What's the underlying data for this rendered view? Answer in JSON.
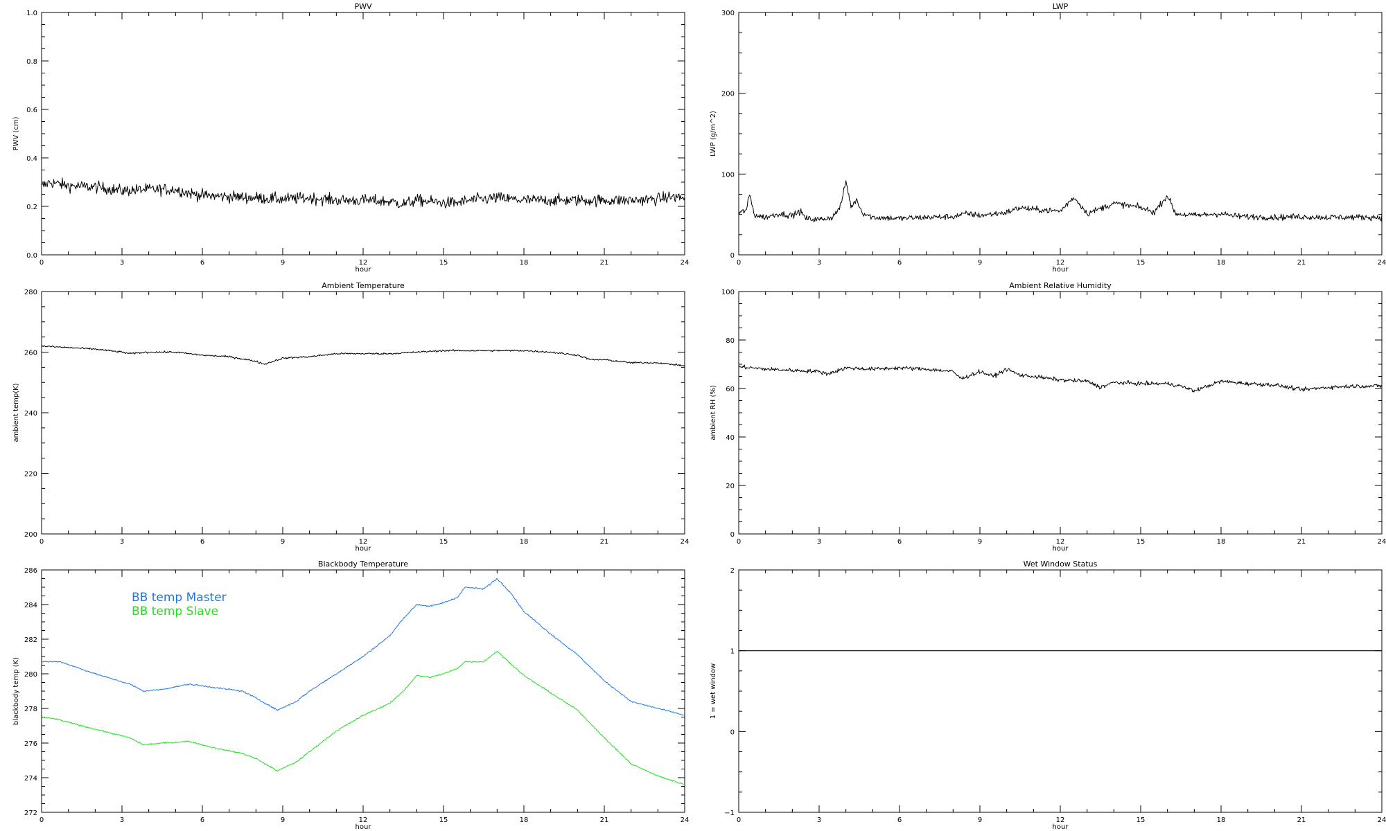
{
  "chart_data": [
    {
      "type": "line",
      "title": "PWV",
      "xlabel": "hour",
      "ylabel": "PWV (cm)",
      "xlim": [
        0,
        24
      ],
      "ylim": [
        0.0,
        1.0
      ],
      "xticks": [
        "0",
        "3",
        "6",
        "9",
        "12",
        "15",
        "18",
        "21",
        "24"
      ],
      "yticks": [
        "0.0",
        "0.2",
        "0.4",
        "0.6",
        "0.8",
        "1.0"
      ],
      "grid": false,
      "series": [
        {
          "color": "#000000",
          "noise": 0.012,
          "x": [
            0,
            0.3,
            1,
            2,
            3,
            4,
            5,
            5.5,
            6,
            7,
            8,
            9,
            10,
            11,
            12,
            13,
            13.5,
            14,
            15,
            15.5,
            16,
            17,
            18,
            19,
            20,
            21,
            22,
            23,
            23.5,
            24
          ],
          "y": [
            0.28,
            0.3,
            0.285,
            0.28,
            0.265,
            0.27,
            0.27,
            0.255,
            0.245,
            0.24,
            0.235,
            0.23,
            0.235,
            0.225,
            0.225,
            0.22,
            0.21,
            0.225,
            0.215,
            0.215,
            0.225,
            0.235,
            0.225,
            0.225,
            0.225,
            0.225,
            0.225,
            0.23,
            0.24,
            0.235
          ]
        }
      ]
    },
    {
      "type": "line",
      "title": "LWP",
      "xlabel": "hour",
      "ylabel": "LWP (g/m^2)",
      "xlim": [
        0,
        24
      ],
      "ylim": [
        -50,
        350
      ],
      "xticks": [
        "0",
        "3",
        "6",
        "9",
        "12",
        "15",
        "18",
        "21",
        "24"
      ],
      "yticks": [
        "0",
        "100",
        "200",
        "300"
      ],
      "grid": false,
      "series": [
        {
          "color": "#000000",
          "noise": 2.5,
          "x": [
            0,
            0.3,
            0.4,
            0.6,
            1,
            1.5,
            2,
            2.3,
            2.5,
            3,
            3.5,
            3.8,
            4,
            4.2,
            4.4,
            4.6,
            5,
            6,
            7,
            8,
            8.5,
            9,
            10,
            10.5,
            11,
            12,
            12.5,
            12.8,
            13,
            14,
            15,
            15.5,
            16,
            16.3,
            17,
            18,
            18.5,
            19,
            20,
            21,
            22,
            23,
            24
          ],
          "y": [
            18,
            25,
            50,
            15,
            12,
            18,
            15,
            22,
            10,
            8,
            12,
            30,
            72,
            28,
            42,
            20,
            12,
            10,
            12,
            13,
            18,
            15,
            20,
            28,
            25,
            22,
            45,
            30,
            18,
            35,
            28,
            20,
            48,
            18,
            15,
            18,
            14,
            13,
            12,
            13,
            12,
            12,
            12
          ]
        }
      ]
    },
    {
      "type": "line",
      "title": "Ambient Temperature",
      "xlabel": "hour",
      "ylabel": "ambient temp(K)",
      "xlim": [
        0,
        24
      ],
      "ylim": [
        200,
        280
      ],
      "xticks": [
        "0",
        "3",
        "6",
        "9",
        "12",
        "15",
        "18",
        "21",
        "24"
      ],
      "yticks": [
        "200",
        "220",
        "240",
        "260",
        "280"
      ],
      "grid": false,
      "series": [
        {
          "color": "#000000",
          "noise": 0.15,
          "x": [
            0,
            1,
            2,
            3,
            3.3,
            4,
            5,
            6,
            7,
            8,
            8.3,
            9,
            10,
            11,
            12,
            13,
            14,
            15,
            16,
            17,
            18,
            19,
            20,
            20.5,
            21,
            22,
            23,
            24
          ],
          "y": [
            262,
            261.5,
            261,
            260,
            259.5,
            260,
            260,
            259,
            258.5,
            257,
            256,
            258,
            258.5,
            259.5,
            259.5,
            259.5,
            260,
            260.5,
            260.5,
            260.5,
            260.5,
            260,
            259,
            257.5,
            257.5,
            256.5,
            256.5,
            255.5
          ]
        }
      ]
    },
    {
      "type": "line",
      "title": "Ambient Relative Humidity",
      "xlabel": "hour",
      "ylabel": "ambient RH (%)",
      "xlim": [
        0,
        24
      ],
      "ylim": [
        0,
        100
      ],
      "xticks": [
        "0",
        "3",
        "6",
        "9",
        "12",
        "15",
        "18",
        "21",
        "24"
      ],
      "yticks": [
        "0",
        "20",
        "40",
        "60",
        "80",
        "100"
      ],
      "grid": false,
      "series": [
        {
          "color": "#000000",
          "noise": 0.4,
          "x": [
            0,
            1,
            2,
            3,
            3.3,
            4,
            5,
            6,
            7,
            8,
            8.3,
            9,
            9.5,
            10,
            10.5,
            11,
            12,
            13,
            13.5,
            14,
            15,
            16,
            16.5,
            17,
            17.5,
            18,
            19,
            20,
            21,
            22,
            23,
            24
          ],
          "y": [
            69,
            68,
            67.5,
            67,
            66,
            68.5,
            68,
            68.5,
            68,
            67,
            64,
            67,
            65,
            68,
            65.5,
            65,
            63.5,
            63,
            60.5,
            62.5,
            62,
            62,
            61,
            59,
            61,
            63,
            62,
            61.5,
            59.5,
            60.5,
            61,
            61
          ]
        }
      ]
    },
    {
      "type": "line",
      "title": "Blackbody Temperature",
      "xlabel": "hour",
      "ylabel": "blackbody temp (K)",
      "xlim": [
        0,
        24
      ],
      "ylim": [
        272,
        286
      ],
      "xticks": [
        "0",
        "3",
        "6",
        "9",
        "12",
        "15",
        "18",
        "21",
        "24"
      ],
      "yticks": [
        "272",
        "274",
        "276",
        "278",
        "280",
        "282",
        "284",
        "286"
      ],
      "grid": false,
      "legend": "top-left",
      "series": [
        {
          "name": "BB temp Master",
          "color": "#1f77e6",
          "noise": 0.02,
          "x": [
            0,
            0.7,
            2,
            3.3,
            3.8,
            4.5,
            5.5,
            6.5,
            7.5,
            8,
            8.8,
            9.5,
            10,
            11,
            12,
            13,
            13.5,
            14,
            14.5,
            15,
            15.5,
            15.8,
            16.5,
            17,
            17.5,
            18,
            19,
            20,
            21,
            22,
            23,
            24
          ],
          "y": [
            280.7,
            280.7,
            280,
            279.4,
            279,
            279.1,
            279.4,
            279.2,
            279,
            278.6,
            277.9,
            278.4,
            279,
            280,
            281,
            282.2,
            283.2,
            284,
            283.9,
            284.1,
            284.4,
            285,
            284.9,
            285.5,
            284.7,
            283.6,
            282.3,
            281.1,
            279.6,
            278.4,
            278,
            277.6
          ]
        },
        {
          "name": "BB temp Slave",
          "color": "#22e022",
          "noise": 0.02,
          "x": [
            0,
            0.5,
            2,
            3.3,
            3.8,
            4.5,
            5.5,
            6.5,
            7.5,
            8,
            8.8,
            9.5,
            10,
            11,
            12,
            13,
            13.5,
            14,
            14.5,
            15,
            15.5,
            15.8,
            16.5,
            17,
            17.5,
            18,
            19,
            20,
            21,
            22,
            23,
            24
          ],
          "y": [
            277.5,
            277.4,
            276.8,
            276.3,
            275.9,
            276,
            276.1,
            275.7,
            275.4,
            275.1,
            274.4,
            274.9,
            275.5,
            276.7,
            277.6,
            278.3,
            279,
            279.9,
            279.8,
            280,
            280.3,
            280.7,
            280.7,
            281.3,
            280.6,
            279.9,
            278.9,
            277.9,
            276.3,
            274.8,
            274.1,
            273.6
          ]
        }
      ]
    },
    {
      "type": "line",
      "title": "Wet Window Status",
      "xlabel": "hour",
      "ylabel": "1 = wet window",
      "xlim": [
        0,
        24
      ],
      "ylim": [
        -1,
        2
      ],
      "xticks": [
        "0",
        "3",
        "6",
        "9",
        "12",
        "15",
        "18",
        "21",
        "24"
      ],
      "yticks": [
        "−1",
        "0",
        "1",
        "2"
      ],
      "grid": false,
      "series": [
        {
          "color": "#000000",
          "noise": 0,
          "x": [
            0,
            24
          ],
          "y": [
            1,
            1
          ]
        }
      ]
    }
  ]
}
